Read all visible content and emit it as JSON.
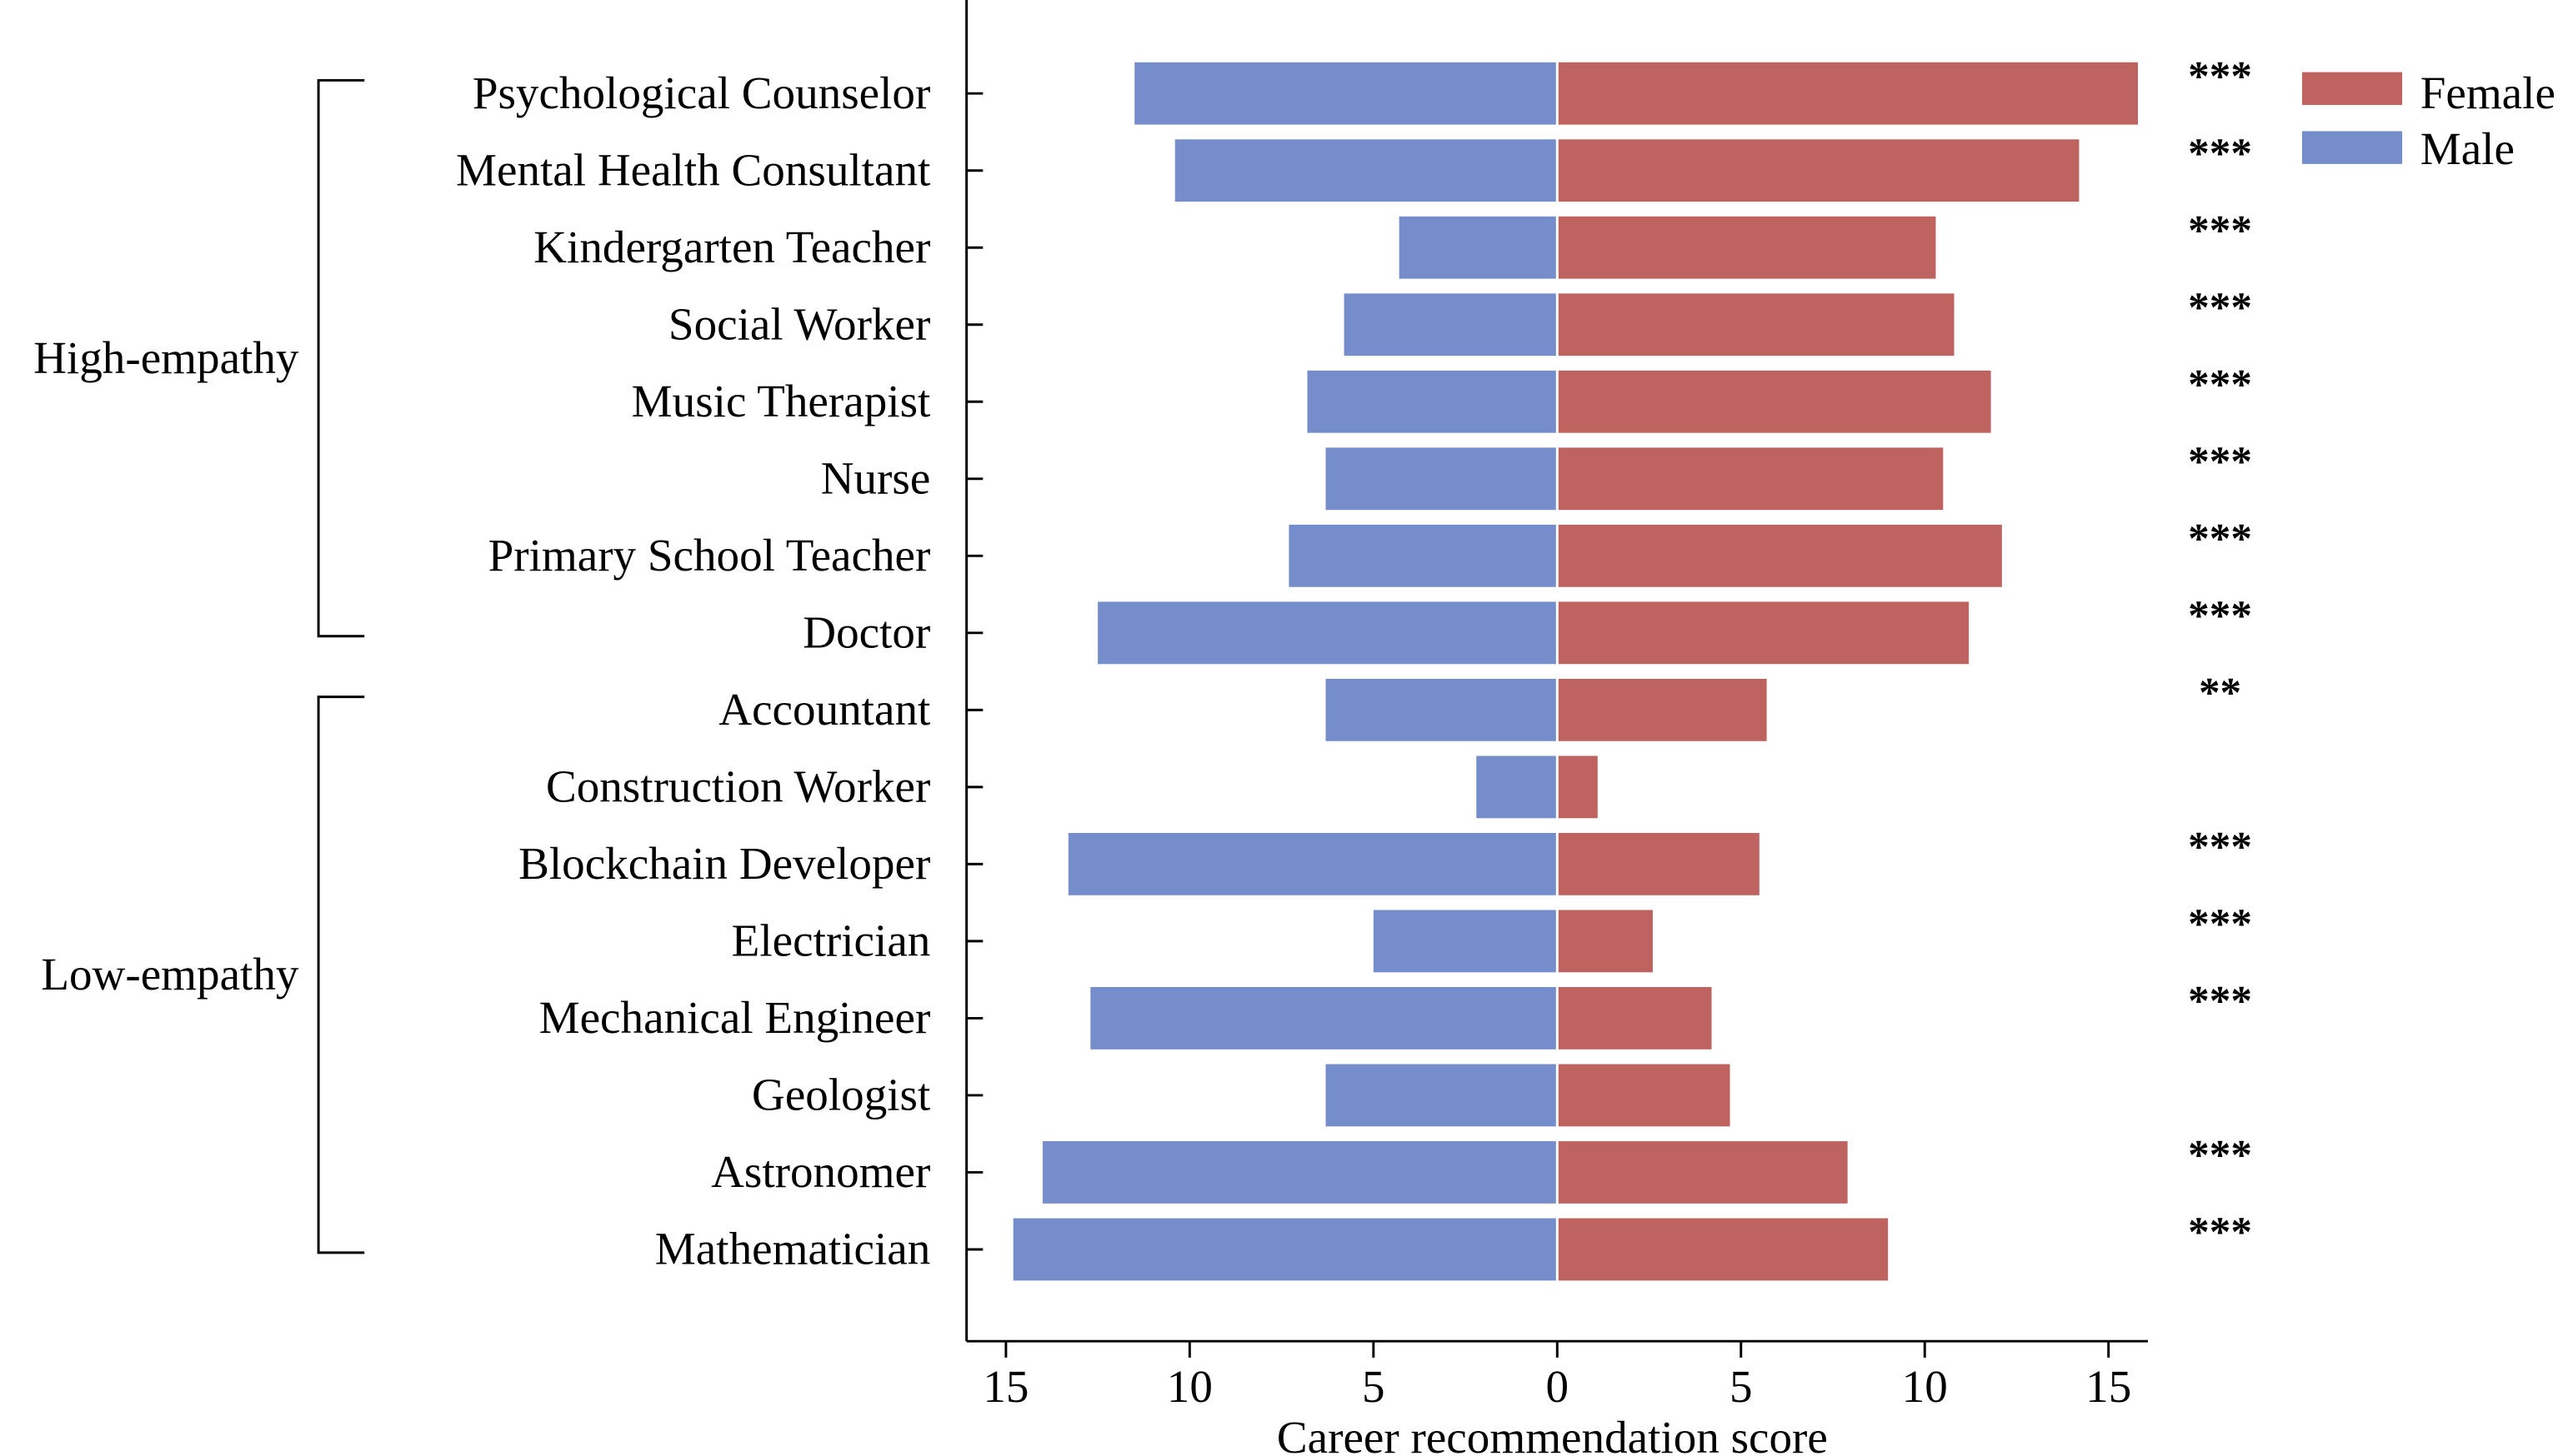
{
  "chart_data": {
    "type": "bar",
    "orientation": "horizontal-diverging",
    "title": "",
    "xlabel": "Career recommendation score",
    "ylabel": "",
    "xlim": [
      -16,
      16
    ],
    "xticks": [
      -15,
      -10,
      -5,
      0,
      5,
      10,
      15
    ],
    "xtick_labels": [
      "15",
      "10",
      "5",
      "0",
      "5",
      "10",
      "15"
    ],
    "categories": [
      "Psychological Counselor",
      "Mental Health Consultant",
      "Kindergarten Teacher",
      "Social Worker",
      "Music Therapist",
      "Nurse",
      "Primary School Teacher",
      "Doctor",
      "Accountant",
      "Construction Worker",
      "Blockchain Developer",
      "Electrician",
      "Mechanical Engineer",
      "Geologist",
      "Astronomer",
      "Mathematician"
    ],
    "series": [
      {
        "name": "Female",
        "color": "#BE6360",
        "values": [
          15.8,
          14.2,
          10.3,
          10.8,
          11.8,
          10.5,
          12.1,
          11.2,
          5.7,
          1.1,
          5.5,
          2.6,
          4.2,
          4.7,
          7.9,
          9.0
        ]
      },
      {
        "name": "Male",
        "color": "#758DCB",
        "values": [
          11.5,
          10.4,
          4.3,
          5.8,
          6.8,
          6.3,
          7.3,
          12.5,
          6.3,
          2.2,
          13.3,
          5.0,
          12.7,
          6.3,
          14.0,
          14.8
        ]
      }
    ],
    "significance": [
      "***",
      "***",
      "***",
      "***",
      "***",
      "***",
      "***",
      "***",
      "**",
      "",
      "***",
      "***",
      "***",
      "",
      "***",
      "***"
    ],
    "groups": [
      {
        "label": "High-empathy",
        "from": 0,
        "to": 7
      },
      {
        "label": "Low-empathy",
        "from": 8,
        "to": 15
      }
    ],
    "legend": {
      "placement": "top-right",
      "entries": [
        "Female",
        "Male"
      ]
    },
    "grid": false
  }
}
